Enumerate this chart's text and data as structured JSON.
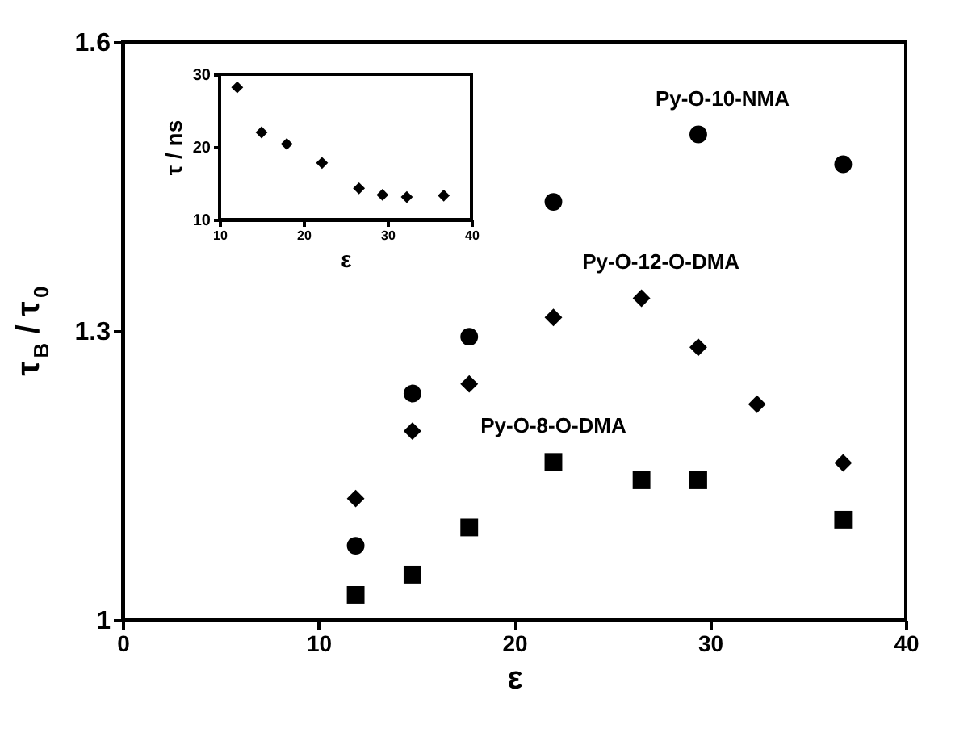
{
  "chart_data": [
    {
      "type": "scatter",
      "xlabel": "ε",
      "ylabel": "τ$_{B}$ / τ$_{0}$",
      "xlim": [
        0,
        40
      ],
      "xticks": [
        0,
        10,
        20,
        30,
        40
      ],
      "ylim": [
        1,
        1.6
      ],
      "yticks": [
        1,
        1.3,
        1.6
      ],
      "grid": false,
      "legend": false,
      "x": [
        11.9,
        14.8,
        17.7,
        22.0,
        26.5,
        29.4,
        32.4,
        36.8
      ],
      "series": [
        {
          "name": "Py-O-10-NMA",
          "color": "#000000",
          "marker": "circle",
          "x": [
            11.9,
            14.8,
            17.7,
            22.0,
            29.4,
            36.8
          ],
          "values": [
            1.077,
            1.235,
            1.294,
            1.434,
            1.504,
            1.473
          ]
        },
        {
          "name": "Py-O-12-O-DMA",
          "color": "#000000",
          "marker": "diamond",
          "values": [
            1.126,
            1.196,
            1.245,
            1.314,
            1.334,
            1.283,
            1.224,
            1.163
          ]
        },
        {
          "name": "Py-O-8-O-DMA",
          "color": "#000000",
          "marker": "square",
          "x": [
            11.9,
            14.8,
            17.7,
            22.0,
            26.5,
            29.4,
            36.8
          ],
          "values": [
            1.026,
            1.047,
            1.096,
            1.164,
            1.145,
            1.145,
            1.104
          ]
        }
      ]
    },
    {
      "type": "scatter",
      "xlabel": "ε",
      "ylabel": "τ / ns",
      "xlim": [
        10,
        40
      ],
      "xticks": [
        10,
        20,
        30,
        40
      ],
      "ylim": [
        10,
        30
      ],
      "yticks": [
        10,
        20,
        30
      ],
      "grid": false,
      "legend": false,
      "marker": "diamond",
      "color": "#000000",
      "x": [
        12.1,
        15.0,
        18.0,
        22.2,
        26.6,
        29.4,
        32.3,
        36.7
      ],
      "values": [
        28.2,
        22.0,
        20.4,
        17.8,
        14.3,
        13.4,
        13.1,
        13.3
      ]
    }
  ]
}
